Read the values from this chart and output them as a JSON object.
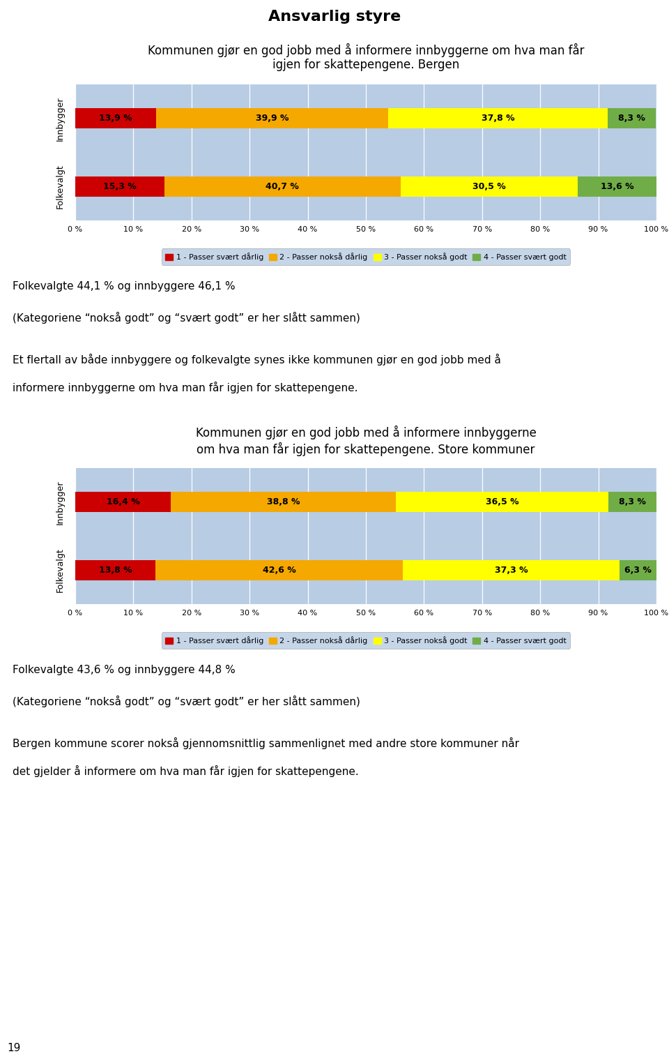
{
  "page_title": "Ansvarlig styre",
  "chart1": {
    "title": "Kommunen gjør en god jobb med å informere innbyggerne om hva man får\nigjen for skattepengene. Bergen",
    "rows": [
      "Folkevalgt",
      "Innbygger"
    ],
    "values": [
      [
        15.3,
        40.7,
        30.5,
        13.6
      ],
      [
        13.9,
        39.9,
        37.8,
        8.3
      ]
    ],
    "colors": [
      "#cc0000",
      "#f5a800",
      "#ffff00",
      "#70ad47"
    ],
    "bg_color": "#b8cce4"
  },
  "text1_line1": "Folkevalgte 44,1 % og innbyggere 46,1 %",
  "text1_line2": "(Kategoriene “nokså godt” og “svært godt” er her slått sammen)",
  "text2_line1": "Et flertall av både innbyggere og folkevalgte synes ikke kommunen gjør en god jobb med å",
  "text2_line2": "informere innbyggerne om hva man får igjen for skattepengene.",
  "text2_bold_word": "både",
  "chart2": {
    "title": "Kommunen gjør en god jobb med å informere innbyggerne\nom hva man får igjen for skattepengene. Store kommuner",
    "rows": [
      "Folkevalgt",
      "Innbygger"
    ],
    "values": [
      [
        13.8,
        42.6,
        37.3,
        6.3
      ],
      [
        16.4,
        38.8,
        36.5,
        8.3
      ]
    ],
    "colors": [
      "#cc0000",
      "#f5a800",
      "#ffff00",
      "#70ad47"
    ],
    "bg_color": "#b8cce4"
  },
  "text3_line1": "Folkevalgte 43,6 % og innbyggere 44,8 %",
  "text3_line2": "(Kategoriene “nokså godt” og “svært godt” er her slått sammen)",
  "text4_line1": "Bergen kommune scorer nokså gjennomsnittlig sammenlignet med andre store kommuner når",
  "text4_line2": "det gjelder å informere om hva man får igjen for skattepengene.",
  "legend_labels": [
    "1 - Passer svært dårlig",
    "2 - Passer nokså dårlig",
    "3 - Passer nokså godt",
    "4 - Passer svært godt"
  ],
  "legend_colors": [
    "#cc0000",
    "#f5a800",
    "#ffff00",
    "#70ad47"
  ],
  "page_number": "19",
  "fig_width": 9.6,
  "fig_height": 15.21,
  "dpi": 100
}
